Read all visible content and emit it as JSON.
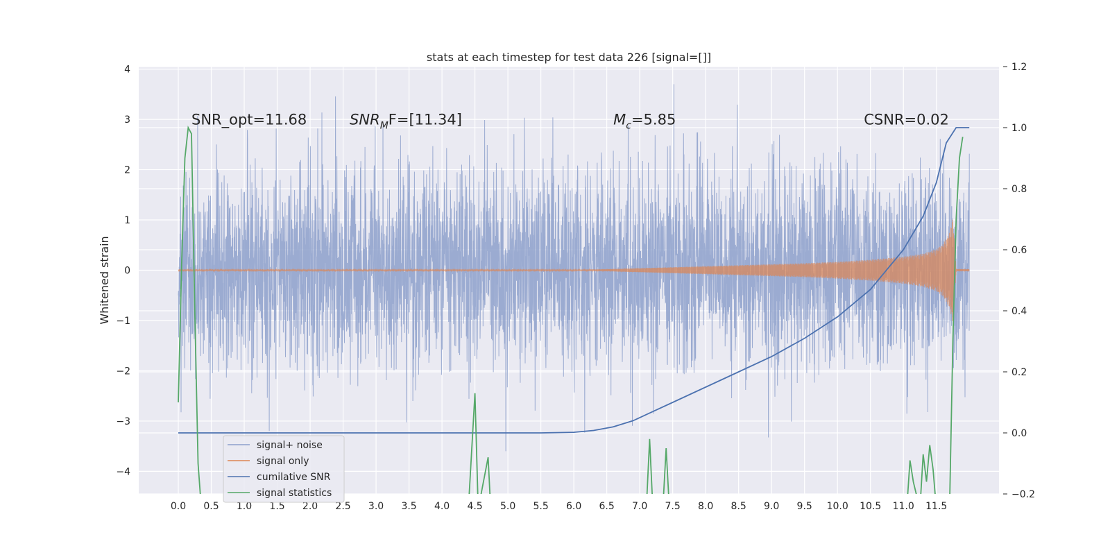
{
  "chart_data": {
    "type": "line",
    "title": "stats at each timestep for test data 226 [signal=[]]",
    "ylabel": "Whitened strain",
    "xlim": [
      -0.6,
      12.45
    ],
    "ylim": [
      -4.45,
      4.05
    ],
    "y2lim": [
      -0.2,
      1.2
    ],
    "x_ticks": [
      "0.0",
      "0.5",
      "1.0",
      "1.5",
      "2.0",
      "2.5",
      "3.0",
      "3.5",
      "4.0",
      "4.5",
      "5.0",
      "5.5",
      "6.0",
      "6.5",
      "7.0",
      "7.5",
      "8.0",
      "8.5",
      "9.0",
      "9.5",
      "10.0",
      "10.5",
      "11.0",
      "11.5"
    ],
    "y_ticks": [
      "4",
      "3",
      "2",
      "1",
      "0",
      "−1",
      "−2",
      "−3",
      "−4"
    ],
    "y2_ticks": [
      "1.2",
      "1.0",
      "0.8",
      "0.6",
      "0.4",
      "0.2",
      "0.0",
      "−0.2"
    ],
    "grid": true,
    "legend_position": "lower-left",
    "annotations": {
      "snr_opt": {
        "text": "SNR_opt=11.68",
        "x": 0.2,
        "y": 2.9
      },
      "snr_mf": {
        "main": "SNR",
        "sub": "M",
        "rest": "F=[11.34]",
        "x": 2.6,
        "y": 2.9
      },
      "mchirp": {
        "main": "M",
        "sub": "c",
        "rest": "=5.85",
        "x": 6.6,
        "y": 2.9
      },
      "csnr": {
        "text": "CSNR=0.02",
        "x": 10.4,
        "y": 2.9
      }
    },
    "series": [
      {
        "name": "signal+ noise",
        "color": "#8da0cb",
        "axis": "left",
        "description": "whitened noise with embedded signal, sampled densely from 0.0 to 12.0",
        "x_range": [
          0.0,
          12.0
        ],
        "y_envelope": [
          -3.6,
          3.7
        ]
      },
      {
        "name": "signal only",
        "color": "#dd8452",
        "axis": "left",
        "x": [
          0.0,
          6.0,
          6.5,
          7.0,
          7.5,
          8.0,
          8.5,
          9.0,
          9.5,
          10.0,
          10.5,
          11.0,
          11.3,
          11.5,
          11.6,
          11.7,
          11.75,
          11.8,
          12.0
        ],
        "amplitude": [
          0.01,
          0.01,
          0.02,
          0.04,
          0.06,
          0.08,
          0.1,
          0.12,
          0.14,
          0.17,
          0.21,
          0.27,
          0.33,
          0.42,
          0.52,
          0.75,
          1.05,
          0.02,
          0.02
        ]
      },
      {
        "name": "cumilative SNR",
        "color": "#4c72b0",
        "axis": "right",
        "x": [
          0.0,
          5.5,
          6.0,
          6.3,
          6.6,
          6.9,
          7.2,
          7.5,
          8.0,
          8.5,
          9.0,
          9.5,
          10.0,
          10.5,
          11.0,
          11.3,
          11.5,
          11.65,
          11.8,
          12.0
        ],
        "y": [
          0.0,
          0.0,
          0.002,
          0.008,
          0.02,
          0.04,
          0.07,
          0.1,
          0.15,
          0.2,
          0.25,
          0.31,
          0.38,
          0.47,
          0.6,
          0.71,
          0.82,
          0.95,
          1.0,
          1.0
        ]
      },
      {
        "name": "signal statistics",
        "color": "#55a868",
        "axis": "right",
        "x": [
          0.0,
          0.05,
          0.1,
          0.15,
          0.2,
          0.25,
          0.3,
          0.35,
          0.4,
          4.4,
          4.5,
          4.55,
          4.7,
          4.75,
          4.8,
          4.85,
          7.1,
          7.15,
          7.2,
          7.35,
          7.4,
          7.45,
          11.05,
          11.1,
          11.15,
          11.25,
          11.3,
          11.35,
          11.4,
          11.45,
          11.5,
          11.55,
          11.7,
          11.75,
          11.8,
          11.85,
          11.9
        ],
        "y": [
          0.1,
          0.55,
          0.9,
          1.0,
          0.98,
          0.4,
          -0.1,
          -0.25,
          -0.25,
          -0.25,
          0.13,
          -0.25,
          -0.08,
          -0.3,
          -0.25,
          -0.25,
          -0.25,
          -0.02,
          -0.25,
          -0.25,
          -0.05,
          -0.25,
          -0.25,
          -0.09,
          -0.16,
          -0.25,
          -0.07,
          -0.16,
          -0.04,
          -0.12,
          -0.25,
          -0.25,
          -0.25,
          0.3,
          0.7,
          0.9,
          0.97
        ]
      }
    ]
  }
}
